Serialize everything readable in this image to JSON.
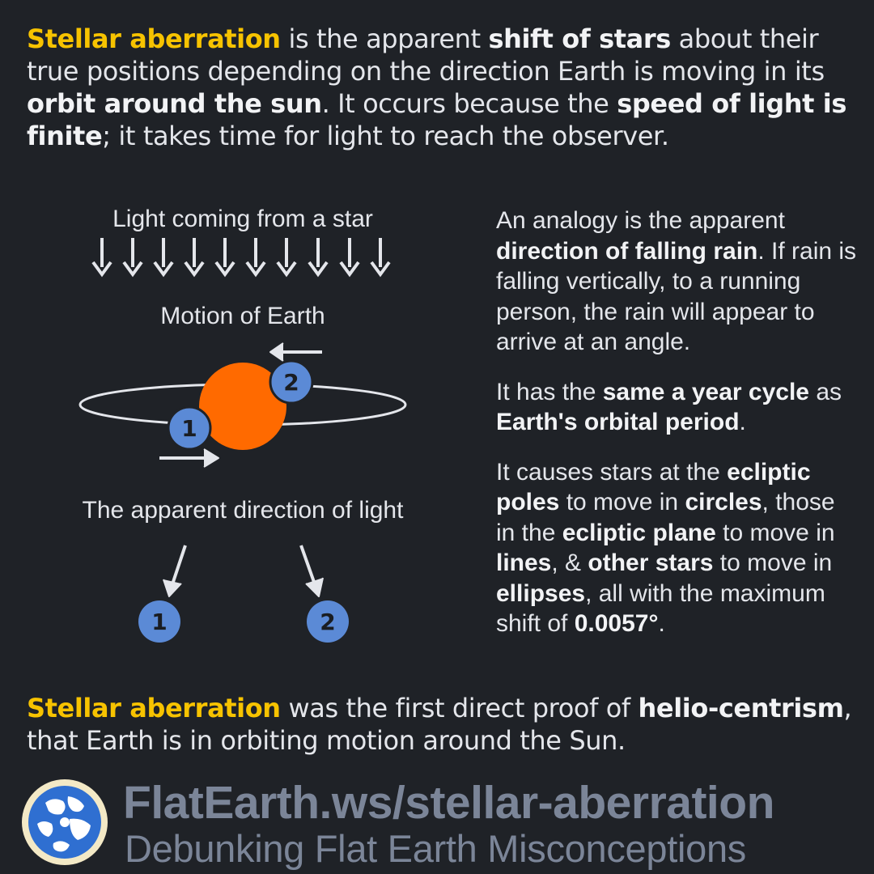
{
  "intro": {
    "term": "Stellar aberration",
    "t1": " is the apparent ",
    "b1": "shift of stars",
    "t2": " about their true positions depending on the direction Earth is moving in its ",
    "b2": "orbit around the sun",
    "t3": ". It occurs because the ",
    "b3": "speed of light is finite",
    "t4": "; it takes time for light to reach the observer."
  },
  "diagram": {
    "caption_light": "Light coming from a star",
    "caption_motion": "Motion of Earth",
    "caption_apparent": "The apparent direction of light",
    "marker_1": "1",
    "marker_2": "2",
    "colors": {
      "sun": "#ff6a00",
      "earth": "#5b8ad6",
      "line": "#e4e6eb"
    }
  },
  "facts": {
    "p1_t1": "An analogy is the apparent ",
    "p1_b1": "direction of falling rain",
    "p1_t2": ". If rain is falling vertically, to a running person, the rain will appear to arrive at an angle.",
    "p2_t1": "It has the ",
    "p2_b1": "same a year cycle",
    "p2_t2": " as ",
    "p2_b2": "Earth's orbital period",
    "p2_t3": ".",
    "p3_t1": "It causes stars at the ",
    "p3_b1": "ecliptic poles",
    "p3_t2": " to move in ",
    "p3_b2": "circles",
    "p3_t3": ", those in the ",
    "p3_b3": "ecliptic plane",
    "p3_t4": " to move in ",
    "p3_b4": "lines",
    "p3_t5": ", & ",
    "p3_b5": "other stars",
    "p3_t6": " to move in ",
    "p3_b6": "ellipses",
    "p3_t7": ", all with the maximum shift of ",
    "p3_b7": "0.0057°",
    "p3_t8": "."
  },
  "outro": {
    "term": "Stellar aberration",
    "t1": " was the first direct proof of ",
    "b1": "helio-centrism",
    "t2": ", that Earth is in orbiting motion around the Sun."
  },
  "footer": {
    "url": "FlatEarth.ws/stellar-aberration",
    "tagline": "Debunking Flat Earth Misconceptions",
    "logo_icon": "globe-logo-icon",
    "colors": {
      "text": "#7b8598",
      "accent": "#f7c300"
    }
  }
}
